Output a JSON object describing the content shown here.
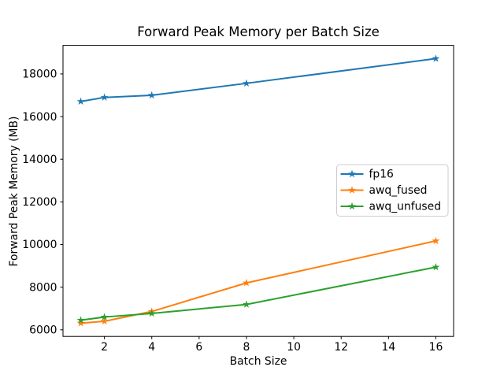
{
  "chart_data": {
    "type": "line",
    "title": "Forward Peak Memory per Batch Size",
    "xlabel": "Batch Size",
    "ylabel": "Forward Peak Memory (MB)",
    "x": [
      1,
      2,
      4,
      8,
      16
    ],
    "series": [
      {
        "name": "fp16",
        "color": "#1f77b4",
        "values": [
          16710,
          16900,
          17000,
          17560,
          18720
        ]
      },
      {
        "name": "awq_fused",
        "color": "#ff7f0e",
        "values": [
          6310,
          6400,
          6860,
          8200,
          10170
        ]
      },
      {
        "name": "awq_unfused",
        "color": "#2ca02c",
        "values": [
          6450,
          6600,
          6770,
          7190,
          8940
        ]
      }
    ],
    "marker": "star",
    "xticks": [
      2,
      4,
      6,
      8,
      10,
      12,
      14,
      16
    ],
    "yticks": [
      6000,
      8000,
      10000,
      12000,
      14000,
      16000,
      18000
    ],
    "xlim": [
      0.25,
      16.75
    ],
    "ylim": [
      5690,
      19341
    ],
    "grid": false,
    "legend": {
      "position": "center-right",
      "entries": [
        "fp16",
        "awq_fused",
        "awq_unfused"
      ]
    }
  }
}
